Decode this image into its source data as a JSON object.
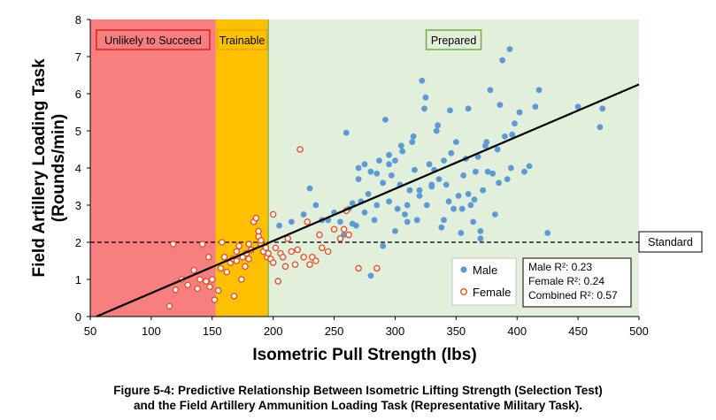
{
  "chart_data": {
    "type": "scatter",
    "xlabel": "Isometric Pull Strength (lbs)",
    "ylabel": "Field Artillery  Loading Task (Rounds/min)",
    "xlim": [
      50,
      500
    ],
    "ylim": [
      0,
      8
    ],
    "xticks": [
      "50",
      "100",
      "150",
      "200",
      "250",
      "300",
      "350",
      "400",
      "450",
      "500"
    ],
    "yticks": [
      "0",
      "1",
      "2",
      "3",
      "4",
      "5",
      "6",
      "7",
      "8"
    ],
    "grid": false,
    "legend_position": "bottom-right",
    "zones": [
      {
        "label": "Unlikely to Succeed",
        "x_start": 50,
        "x_end": 153,
        "fill": "#f77f7f",
        "border": "#e0201e"
      },
      {
        "label": "Trainable",
        "x_start": 153,
        "x_end": 196,
        "fill": "#ffc000",
        "border": "#e6a800"
      },
      {
        "label": "Prepared",
        "x_start": 196,
        "x_end": 500,
        "fill": "#e2efda",
        "border": "#70ad47"
      }
    ],
    "standard": {
      "y": 2,
      "label": "Standard"
    },
    "regression_line": {
      "x": [
        55,
        500
      ],
      "y": [
        0,
        6.25
      ]
    },
    "stats": [
      "Male R²: 0.23",
      "Female R²: 0.24",
      "Combined R²: 0.57"
    ],
    "series": [
      {
        "name": "Male",
        "color": "#5b9bd5",
        "points": [
          [
            230,
            3.45
          ],
          [
            240,
            2.6
          ],
          [
            255,
            2.55
          ],
          [
            262,
            2.9
          ],
          [
            265,
            2.5
          ],
          [
            258,
            2.2
          ],
          [
            268,
            2.45
          ],
          [
            270,
            3.7
          ],
          [
            272,
            3.1
          ],
          [
            275,
            4.1
          ],
          [
            278,
            3.3
          ],
          [
            280,
            3.9
          ],
          [
            283,
            2.6
          ],
          [
            285,
            3.0
          ],
          [
            287,
            4.2
          ],
          [
            290,
            3.6
          ],
          [
            292,
            5.3
          ],
          [
            295,
            4.35
          ],
          [
            297,
            3.8
          ],
          [
            300,
            4.2
          ],
          [
            302,
            2.9
          ],
          [
            304,
            3.55
          ],
          [
            306,
            4.45
          ],
          [
            308,
            2.75
          ],
          [
            310,
            3.0
          ],
          [
            312,
            3.4
          ],
          [
            314,
            4.7
          ],
          [
            316,
            3.95
          ],
          [
            318,
            2.6
          ],
          [
            320,
            3.4
          ],
          [
            322,
            6.35
          ],
          [
            324,
            5.6
          ],
          [
            326,
            3.0
          ],
          [
            328,
            4.1
          ],
          [
            330,
            3.5
          ],
          [
            332,
            3.95
          ],
          [
            334,
            5.0
          ],
          [
            336,
            3.7
          ],
          [
            338,
            2.4
          ],
          [
            340,
            4.2
          ],
          [
            342,
            3.55
          ],
          [
            344,
            3.1
          ],
          [
            346,
            4.4
          ],
          [
            348,
            2.9
          ],
          [
            350,
            4.7
          ],
          [
            352,
            3.25
          ],
          [
            354,
            2.25
          ],
          [
            356,
            3.8
          ],
          [
            358,
            4.25
          ],
          [
            360,
            5.6
          ],
          [
            362,
            3.0
          ],
          [
            364,
            2.55
          ],
          [
            366,
            3.9
          ],
          [
            368,
            4.3
          ],
          [
            370,
            2.1
          ],
          [
            372,
            3.4
          ],
          [
            374,
            4.6
          ],
          [
            376,
            3.9
          ],
          [
            378,
            6.1
          ],
          [
            380,
            3.85
          ],
          [
            382,
            2.75
          ],
          [
            384,
            4.5
          ],
          [
            386,
            5.7
          ],
          [
            388,
            6.9
          ],
          [
            390,
            4.85
          ],
          [
            392,
            3.7
          ],
          [
            394,
            7.2
          ],
          [
            396,
            4.9
          ],
          [
            398,
            5.2
          ],
          [
            402,
            5.5
          ],
          [
            406,
            3.9
          ],
          [
            410,
            4.05
          ],
          [
            415,
            5.65
          ],
          [
            418,
            6.1
          ],
          [
            425,
            2.25
          ],
          [
            450,
            5.65
          ],
          [
            468,
            5.1
          ],
          [
            470,
            5.6
          ],
          [
            280,
            1.1
          ],
          [
            290,
            1.9
          ],
          [
            300,
            2.3
          ],
          [
            310,
            2.55
          ],
          [
            320,
            3.25
          ],
          [
            330,
            3.55
          ],
          [
            340,
            2.6
          ],
          [
            355,
            2.9
          ],
          [
            365,
            3.15
          ],
          [
            375,
            4.7
          ],
          [
            385,
            3.6
          ],
          [
            395,
            4.0
          ],
          [
            260,
            4.95
          ],
          [
            270,
            4.0
          ],
          [
            285,
            3.85
          ],
          [
            295,
            4.1
          ],
          [
            305,
            4.6
          ],
          [
            315,
            4.85
          ],
          [
            325,
            5.9
          ],
          [
            335,
            5.15
          ],
          [
            345,
            5.55
          ],
          [
            360,
            3.3
          ],
          [
            370,
            2.3
          ],
          [
            205,
            2.45
          ],
          [
            215,
            2.55
          ],
          [
            225,
            2.75
          ],
          [
            235,
            3.0
          ],
          [
            245,
            2.6
          ],
          [
            250,
            2.8
          ],
          [
            265,
            3.05
          ],
          [
            275,
            2.8
          ],
          [
            295,
            3.1
          ]
        ]
      },
      {
        "name": "Female",
        "color": "#e8512a",
        "points": [
          [
            115,
            0.28
          ],
          [
            118,
            1.95
          ],
          [
            120,
            0.72
          ],
          [
            125,
            1.0
          ],
          [
            130,
            0.85
          ],
          [
            135,
            1.25
          ],
          [
            138,
            0.75
          ],
          [
            140,
            1.0
          ],
          [
            142,
            1.95
          ],
          [
            145,
            0.95
          ],
          [
            147,
            1.6
          ],
          [
            148,
            0.8
          ],
          [
            150,
            1.0
          ],
          [
            152,
            0.45
          ],
          [
            155,
            0.7
          ],
          [
            157,
            1.3
          ],
          [
            158,
            2.0
          ],
          [
            160,
            1.6
          ],
          [
            162,
            1.2
          ],
          [
            165,
            1.45
          ],
          [
            167,
            1.55
          ],
          [
            168,
            0.55
          ],
          [
            170,
            1.5
          ],
          [
            172,
            1.9
          ],
          [
            174,
            1.0
          ],
          [
            175,
            1.6
          ],
          [
            177,
            1.35
          ],
          [
            178,
            1.7
          ],
          [
            180,
            1.55
          ],
          [
            182,
            1.8
          ],
          [
            184,
            2.55
          ],
          [
            186,
            2.65
          ],
          [
            188,
            2.3
          ],
          [
            190,
            1.95
          ],
          [
            192,
            1.75
          ],
          [
            194,
            1.85
          ],
          [
            195,
            1.6
          ],
          [
            196,
            1.7
          ],
          [
            198,
            1.55
          ],
          [
            200,
            1.45
          ],
          [
            202,
            1.85
          ],
          [
            204,
            0.95
          ],
          [
            206,
            1.7
          ],
          [
            208,
            1.6
          ],
          [
            210,
            1.35
          ],
          [
            212,
            2.1
          ],
          [
            215,
            1.75
          ],
          [
            218,
            1.4
          ],
          [
            220,
            1.8
          ],
          [
            222,
            4.5
          ],
          [
            225,
            1.6
          ],
          [
            228,
            2.55
          ],
          [
            230,
            1.4
          ],
          [
            232,
            1.6
          ],
          [
            235,
            1.5
          ],
          [
            238,
            2.2
          ],
          [
            240,
            1.85
          ],
          [
            245,
            1.75
          ],
          [
            250,
            2.35
          ],
          [
            255,
            2.1
          ],
          [
            258,
            2.35
          ],
          [
            262,
            2.2
          ],
          [
            270,
            1.3
          ],
          [
            285,
            1.3
          ],
          [
            200,
            2.75
          ],
          [
            188,
            2.15
          ],
          [
            180,
            1.95
          ],
          [
            190,
            2.05
          ],
          [
            260,
            2.85
          ],
          [
            170,
            1.75
          ]
        ]
      }
    ]
  },
  "caption_lines": [
    "Figure 5-4: Predictive Relationship Between Isometric Lifting Strength (Selection Test)",
    "and the Field Artillery Ammunition Loading Task (Representative Military Task)."
  ]
}
